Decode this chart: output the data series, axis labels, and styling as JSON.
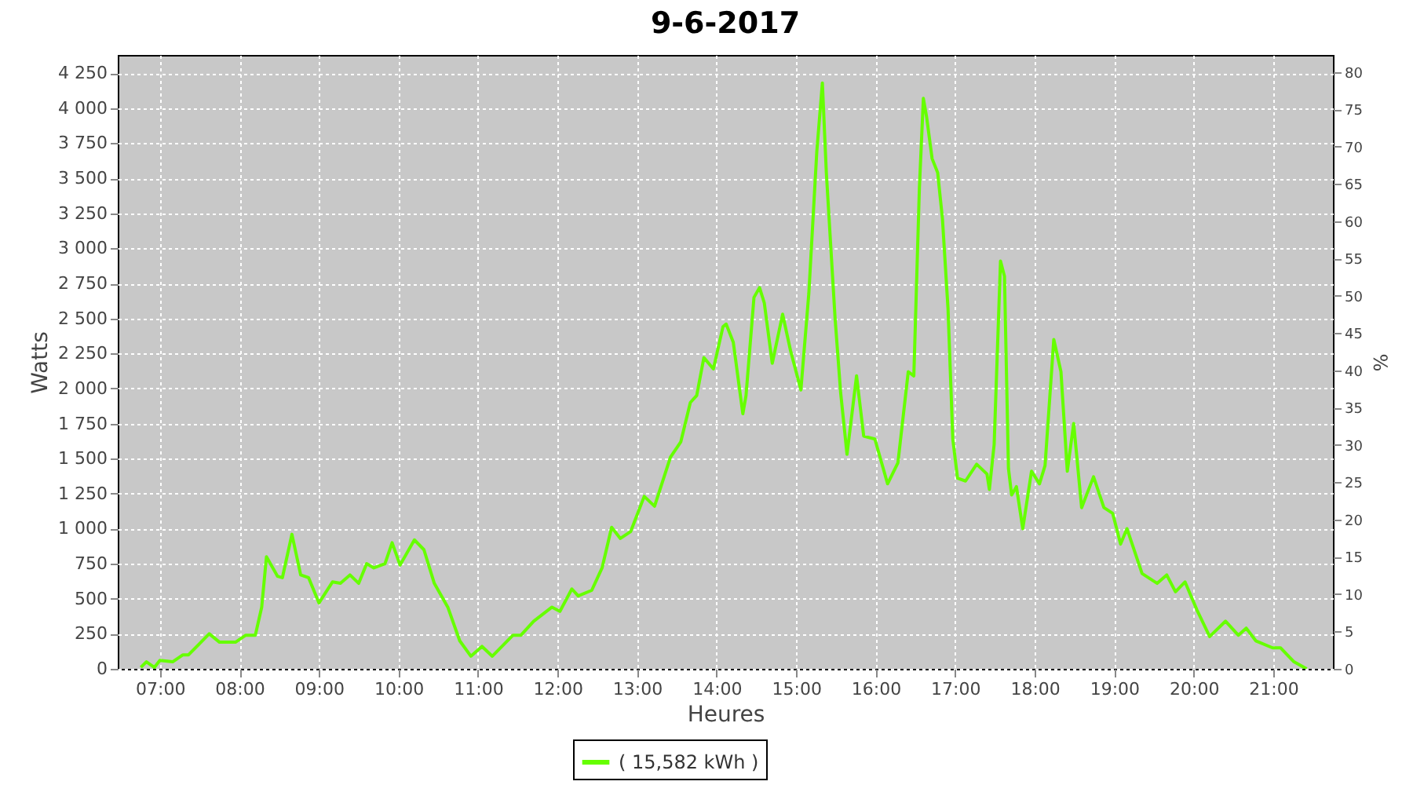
{
  "chart_data": {
    "type": "line",
    "title": "9-6-2017",
    "xlabel": "Heures",
    "ylabel": "Watts",
    "y2label": "%",
    "x": [
      6.76,
      6.83,
      6.93,
      7.0,
      7.16,
      7.29,
      7.36,
      7.62,
      7.75,
      7.95,
      8.08,
      8.2,
      8.28,
      8.34,
      8.48,
      8.54,
      8.66,
      8.77,
      8.87,
      9.0,
      9.17,
      9.27,
      9.39,
      9.5,
      9.6,
      9.69,
      9.83,
      9.92,
      10.02,
      10.2,
      10.32,
      10.45,
      10.62,
      10.77,
      10.91,
      11.05,
      11.18,
      11.44,
      11.54,
      11.7,
      11.93,
      12.03,
      12.18,
      12.26,
      12.43,
      12.56,
      12.68,
      12.79,
      12.92,
      13.09,
      13.22,
      13.42,
      13.55,
      13.67,
      13.75,
      13.84,
      13.96,
      14.08,
      14.12,
      14.21,
      14.33,
      14.37,
      14.47,
      14.54,
      14.6,
      14.7,
      14.83,
      14.93,
      15.06,
      15.16,
      15.26,
      15.33,
      15.38,
      15.49,
      15.56,
      15.64,
      15.76,
      15.85,
      15.99,
      16.15,
      16.28,
      16.41,
      16.48,
      16.55,
      16.6,
      16.64,
      16.71,
      16.78,
      16.84,
      16.91,
      16.97,
      17.03,
      17.13,
      17.27,
      17.4,
      17.43,
      17.49,
      17.57,
      17.62,
      17.67,
      17.71,
      17.77,
      17.85,
      17.96,
      18.06,
      18.13,
      18.24,
      18.33,
      18.41,
      18.49,
      18.59,
      18.74,
      18.87,
      18.98,
      19.08,
      19.16,
      19.35,
      19.54,
      19.66,
      19.77,
      19.89,
      20.04,
      20.2,
      20.4,
      20.56,
      20.66,
      20.78,
      20.99,
      21.09,
      21.26,
      21.42
    ],
    "series": [
      {
        "name": "( 15,582 kWh )",
        "color": "#66ff00",
        "values": [
          10,
          50,
          10,
          60,
          50,
          100,
          100,
          250,
          190,
          190,
          240,
          240,
          440,
          800,
          660,
          650,
          960,
          670,
          650,
          470,
          620,
          610,
          670,
          610,
          750,
          720,
          750,
          900,
          740,
          920,
          850,
          610,
          440,
          200,
          90,
          160,
          90,
          240,
          240,
          340,
          440,
          410,
          570,
          520,
          560,
          720,
          1010,
          930,
          980,
          1230,
          1160,
          1510,
          1620,
          1900,
          1950,
          2220,
          2140,
          2440,
          2460,
          2330,
          1820,
          1950,
          2650,
          2720,
          2610,
          2180,
          2530,
          2270,
          1990,
          2680,
          3690,
          4180,
          3540,
          2500,
          1970,
          1530,
          2090,
          1660,
          1640,
          1320,
          1470,
          2120,
          2090,
          3430,
          4070,
          3940,
          3640,
          3540,
          3210,
          2570,
          1640,
          1360,
          1340,
          1460,
          1390,
          1280,
          1600,
          2910,
          2800,
          1430,
          1240,
          1300,
          1000,
          1410,
          1320,
          1450,
          2350,
          2120,
          1410,
          1750,
          1150,
          1370,
          1150,
          1110,
          890,
          1000,
          680,
          610,
          670,
          550,
          620,
          420,
          230,
          340,
          240,
          290,
          200,
          150,
          150,
          50,
          0
        ]
      }
    ],
    "xlim": [
      6.47,
      21.75
    ],
    "xticks": [
      {
        "value": 7,
        "label": "07:00"
      },
      {
        "value": 8,
        "label": "08:00"
      },
      {
        "value": 9,
        "label": "09:00"
      },
      {
        "value": 10,
        "label": "10:00"
      },
      {
        "value": 11,
        "label": "11:00"
      },
      {
        "value": 12,
        "label": "12:00"
      },
      {
        "value": 13,
        "label": "13:00"
      },
      {
        "value": 14,
        "label": "14:00"
      },
      {
        "value": 15,
        "label": "15:00"
      },
      {
        "value": 16,
        "label": "16:00"
      },
      {
        "value": 17,
        "label": "17:00"
      },
      {
        "value": 18,
        "label": "18:00"
      },
      {
        "value": 19,
        "label": "19:00"
      },
      {
        "value": 20,
        "label": "20:00"
      },
      {
        "value": 21,
        "label": "21:00"
      }
    ],
    "ylim": [
      0,
      4380
    ],
    "yticks": [
      0,
      250,
      500,
      750,
      {
        "value": 1000,
        "label": "1 000"
      },
      {
        "value": 1250,
        "label": "1 250"
      },
      {
        "value": 1500,
        "label": "1 500"
      },
      {
        "value": 1750,
        "label": "1 750"
      },
      {
        "value": 2000,
        "label": "2 000"
      },
      {
        "value": 2250,
        "label": "2 250"
      },
      {
        "value": 2500,
        "label": "2 500"
      },
      {
        "value": 2750,
        "label": "2 750"
      },
      {
        "value": 3000,
        "label": "3 000"
      },
      {
        "value": 3250,
        "label": "3 250"
      },
      {
        "value": 3500,
        "label": "3 500"
      },
      {
        "value": 3750,
        "label": "3 750"
      },
      {
        "value": 4000,
        "label": "4 000"
      },
      {
        "value": 4250,
        "label": "4 250"
      }
    ],
    "y2lim": [
      0,
      82.3
    ],
    "y2ticks": [
      0,
      5,
      10,
      15,
      20,
      25,
      30,
      35,
      40,
      45,
      50,
      55,
      60,
      65,
      70,
      75,
      80
    ],
    "grid": true,
    "legend": "bottom",
    "marker": "none",
    "line_style": "solid"
  }
}
